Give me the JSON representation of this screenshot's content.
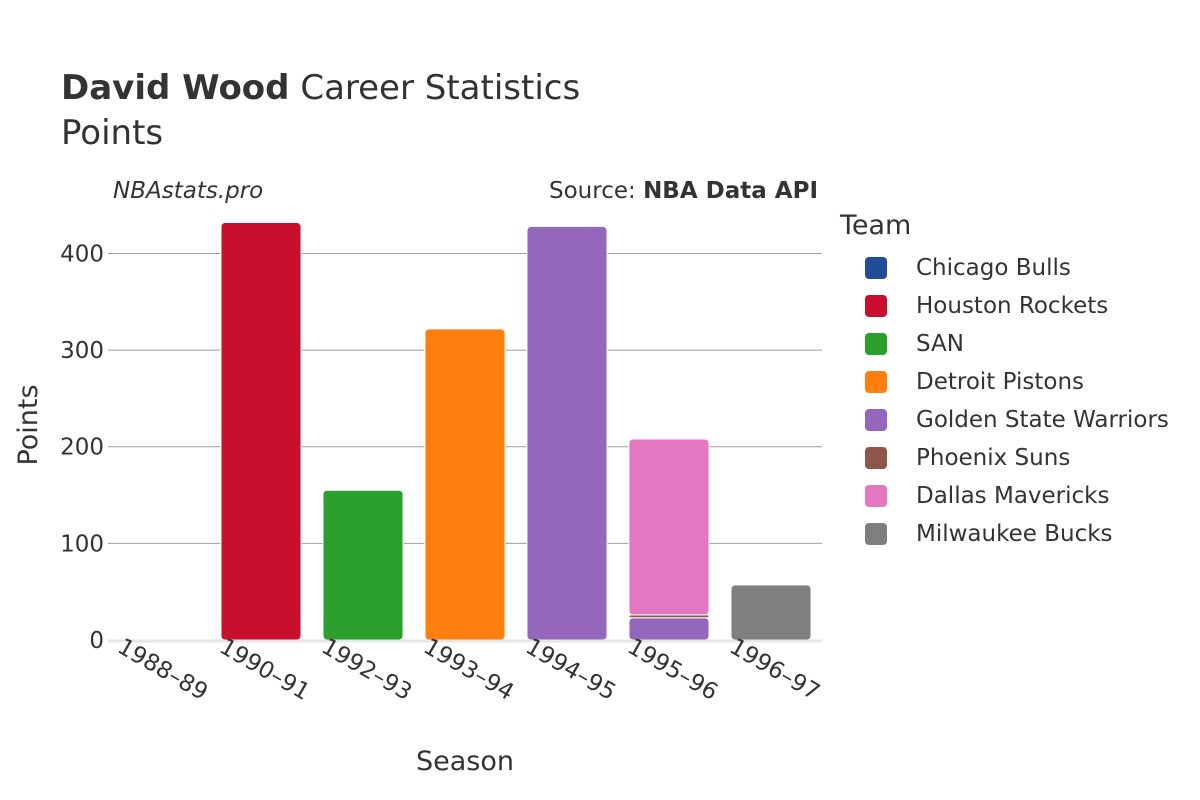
{
  "title": {
    "player": "David Wood",
    "suffix": "Career Statistics",
    "subtitle": "Points"
  },
  "watermark": "NBAstats.pro",
  "source": {
    "prefix": "Source:",
    "name": "NBA Data API"
  },
  "legend": {
    "title": "Team",
    "items": [
      {
        "label": "Chicago Bulls",
        "color": "#1f4e96"
      },
      {
        "label": "Houston Rockets",
        "color": "#c8102e"
      },
      {
        "label": "SAN",
        "color": "#2ca02c"
      },
      {
        "label": "Detroit Pistons",
        "color": "#ff7f0e"
      },
      {
        "label": "Golden State Warriors",
        "color": "#9467bd"
      },
      {
        "label": "Phoenix Suns",
        "color": "#8c564b"
      },
      {
        "label": "Dallas Mavericks",
        "color": "#e377c2"
      },
      {
        "label": "Milwaukee Bucks",
        "color": "#7f7f7f"
      }
    ]
  },
  "chart_data": {
    "type": "bar",
    "stacked": true,
    "xlabel": "Season",
    "ylabel": "Points",
    "ylim": [
      0,
      445
    ],
    "yticks": [
      0,
      100,
      200,
      300,
      400
    ],
    "grid": true,
    "legend_position": "right",
    "categories": [
      "1988–89",
      "1990–91",
      "1992–93",
      "1993–94",
      "1994–95",
      "1995–96",
      "1996–97"
    ],
    "series": [
      {
        "name": "Chicago Bulls",
        "color": "#1f4e96",
        "values": [
          0,
          0,
          0,
          0,
          0,
          0,
          0
        ]
      },
      {
        "name": "Houston Rockets",
        "color": "#c8102e",
        "values": [
          0,
          432,
          0,
          0,
          0,
          0,
          0
        ]
      },
      {
        "name": "SAN",
        "color": "#2ca02c",
        "values": [
          0,
          0,
          155,
          0,
          0,
          0,
          0
        ]
      },
      {
        "name": "Detroit Pistons",
        "color": "#ff7f0e",
        "values": [
          0,
          0,
          0,
          322,
          0,
          0,
          0
        ]
      },
      {
        "name": "Golden State Warriors",
        "color": "#9467bd",
        "values": [
          0,
          0,
          0,
          0,
          428,
          23,
          0
        ]
      },
      {
        "name": "Phoenix Suns",
        "color": "#8c564b",
        "values": [
          0,
          0,
          0,
          0,
          0,
          3,
          0
        ]
      },
      {
        "name": "Dallas Mavericks",
        "color": "#e377c2",
        "values": [
          0,
          0,
          0,
          0,
          0,
          182,
          0
        ]
      },
      {
        "name": "Milwaukee Bucks",
        "color": "#7f7f7f",
        "values": [
          0,
          0,
          0,
          0,
          0,
          0,
          57
        ]
      }
    ]
  }
}
